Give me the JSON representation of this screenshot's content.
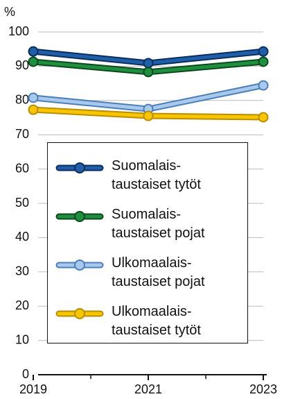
{
  "chart_data": {
    "type": "line",
    "y_unit": "%",
    "x": [
      2019,
      2021,
      2023
    ],
    "xlim": [
      2019,
      2023
    ],
    "xticks": [
      2019,
      2021,
      2023
    ],
    "ylim": [
      0,
      100
    ],
    "yticks": [
      0,
      10,
      20,
      30,
      40,
      50,
      60,
      70,
      80,
      90,
      100
    ],
    "grid": true,
    "series": [
      {
        "name": "Suomalais-\ntaustaiset tytöt",
        "color": "#1f5fa8",
        "edge": "#0b2d5e",
        "values": [
          94.3,
          90.9,
          94.3
        ]
      },
      {
        "name": "Suomalais-\ntaustaiset pojat",
        "color": "#1e8f3e",
        "edge": "#0c4a1e",
        "values": [
          91.3,
          88.3,
          91.3
        ]
      },
      {
        "name": "Ulkomaalais-\ntaustaiset pojat",
        "color": "#a9c9ec",
        "edge": "#4a7fb8",
        "values": [
          80.8,
          77.5,
          84.4
        ]
      },
      {
        "name": "Ulkomaalais-\ntaustaiset tytöt",
        "color": "#f7c600",
        "edge": "#b98e00",
        "values": [
          77.3,
          75.5,
          75.1
        ]
      }
    ]
  }
}
